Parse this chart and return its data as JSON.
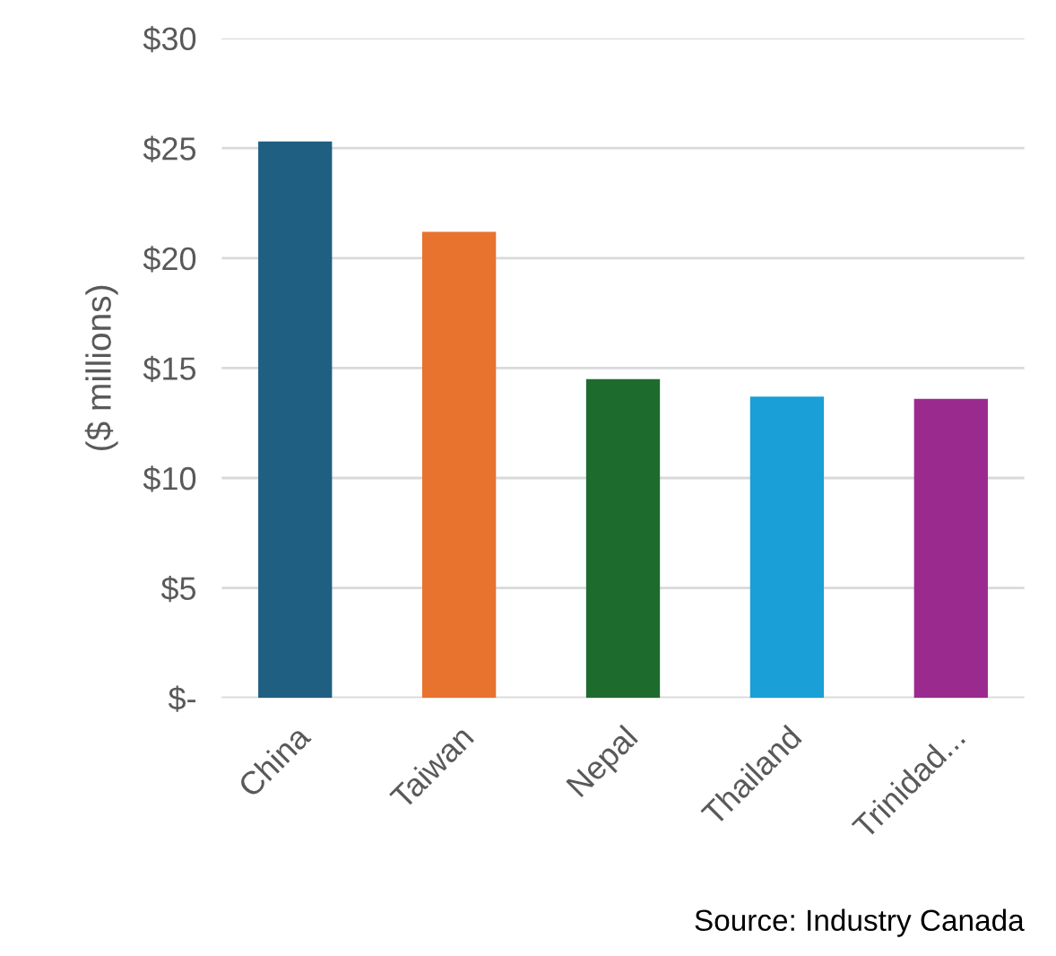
{
  "chart_data": {
    "type": "bar",
    "ylabel": "($ millions)",
    "categories": [
      "China",
      "Taiwan",
      "Nepal",
      "Thailand",
      "Trinidad..."
    ],
    "values": [
      25.3,
      21.2,
      14.5,
      13.7,
      13.6
    ],
    "colors": [
      "#1f5f82",
      "#e8732e",
      "#1e6b2e",
      "#1a9fd6",
      "#9b2a8e"
    ],
    "ylim": [
      0,
      30
    ],
    "yticks": [
      {
        "value": 0,
        "label": "$-"
      },
      {
        "value": 5,
        "label": "$5"
      },
      {
        "value": 10,
        "label": "$10"
      },
      {
        "value": 15,
        "label": "$15"
      },
      {
        "value": 20,
        "label": "$20"
      },
      {
        "value": 25,
        "label": "$25"
      },
      {
        "value": 30,
        "label": "$30"
      }
    ],
    "grid": "y",
    "annotations": [
      "Source: Industry Canada"
    ]
  }
}
